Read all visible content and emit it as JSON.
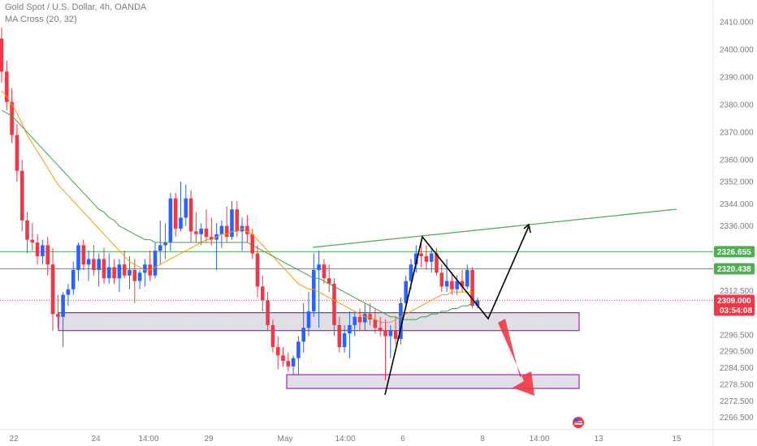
{
  "header": {
    "title": "Gold Spot / U.S. Dollar, 4h, OANDA",
    "indicator": "MA Cross (20, 32)"
  },
  "colors": {
    "up": "#2962ff",
    "down": "#f23645",
    "ma_fast": "#ff9800",
    "ma_slow": "#43a047",
    "level_line": "#4caf50",
    "zone_border": "#9c27b0",
    "zone_fill": "#e1dfe6",
    "drawing": "#000000",
    "arrow": "#f23645",
    "current_badge": "#f23645",
    "level_badge": "#4caf50"
  },
  "chart_data": {
    "type": "candlestick",
    "instrument": "XAUUSD",
    "timeframe": "4h",
    "ylim": [
      2262,
      2418
    ],
    "y_ticks": [
      2266.5,
      2272.5,
      2278.5,
      2284.5,
      2290.5,
      2296.5,
      2312.5,
      2336.0,
      2344.0,
      2352.0,
      2360.0,
      2370.0,
      2380.0,
      2390.0,
      2400.0,
      2410.0
    ],
    "y_tick_labels": [
      "2266.500",
      "2272.500",
      "2278.500",
      "2284.500",
      "2290.500",
      "2296.500",
      "2312.500",
      "2336.000",
      "2344.000",
      "2352.000",
      "2360.000",
      "2370.000",
      "2380.000",
      "2390.000",
      "2400.000",
      "2410.000"
    ],
    "x_tick_labels": [
      "22",
      "24",
      "14:00",
      "29",
      "May",
      "14:00",
      "6",
      "8",
      "14:00",
      "13",
      "15"
    ],
    "x_tick_index": [
      0,
      19,
      31,
      42,
      58,
      70,
      82,
      98,
      110,
      122,
      138
    ],
    "candles": [
      [
        2404.0,
        2408.0,
        2388.0,
        2392.0
      ],
      [
        2392.0,
        2396.0,
        2378.0,
        2381.0
      ],
      [
        2381.0,
        2386.0,
        2366.0,
        2369.0
      ],
      [
        2369.0,
        2373.0,
        2352.0,
        2356.0
      ],
      [
        2356.0,
        2360.0,
        2334.0,
        2338.0
      ],
      [
        2338.0,
        2341.0,
        2326.0,
        2331.0
      ],
      [
        2331.0,
        2337.0,
        2327.0,
        2330.0
      ],
      [
        2330.0,
        2333.0,
        2322.0,
        2325.0
      ],
      [
        2325.0,
        2331.0,
        2322.0,
        2329.0
      ],
      [
        2329.0,
        2332.0,
        2318.0,
        2322.0
      ],
      [
        2322.0,
        2328.0,
        2298.0,
        2304.0
      ],
      [
        2304.0,
        2311.0,
        2299.0,
        2303.0
      ],
      [
        2303.0,
        2312.0,
        2292.0,
        2311.0
      ],
      [
        2311.0,
        2315.0,
        2307.0,
        2313.0
      ],
      [
        2313.0,
        2323.0,
        2311.0,
        2320.0
      ],
      [
        2320.0,
        2330.0,
        2316.0,
        2329.0
      ],
      [
        2329.0,
        2331.0,
        2320.0,
        2322.0
      ],
      [
        2322.0,
        2327.0,
        2316.0,
        2324.0
      ],
      [
        2324.0,
        2329.0,
        2318.0,
        2320.0
      ],
      [
        2320.0,
        2326.0,
        2314.0,
        2324.0
      ],
      [
        2324.0,
        2328.0,
        2315.0,
        2317.0
      ],
      [
        2317.0,
        2326.0,
        2315.0,
        2321.0
      ],
      [
        2321.0,
        2324.0,
        2315.0,
        2317.0
      ],
      [
        2317.0,
        2324.0,
        2312.0,
        2322.0
      ],
      [
        2322.0,
        2327.0,
        2317.0,
        2318.0
      ],
      [
        2318.0,
        2325.0,
        2313.0,
        2320.0
      ],
      [
        2320.0,
        2324.0,
        2308.0,
        2316.0
      ],
      [
        2316.0,
        2320.0,
        2313.0,
        2319.0
      ],
      [
        2319.0,
        2324.0,
        2314.0,
        2322.0
      ],
      [
        2322.0,
        2327.0,
        2316.0,
        2318.0
      ],
      [
        2318.0,
        2330.0,
        2317.0,
        2327.0
      ],
      [
        2327.0,
        2338.0,
        2322.0,
        2329.0
      ],
      [
        2329.0,
        2337.0,
        2324.0,
        2330.0
      ],
      [
        2330.0,
        2348.0,
        2327.0,
        2346.0
      ],
      [
        2346.0,
        2348.0,
        2332.0,
        2335.0
      ],
      [
        2335.0,
        2352.0,
        2334.0,
        2339.0
      ],
      [
        2339.0,
        2351.0,
        2336.0,
        2346.0
      ],
      [
        2346.0,
        2349.0,
        2330.0,
        2334.0
      ],
      [
        2334.0,
        2341.0,
        2330.0,
        2333.0
      ],
      [
        2333.0,
        2337.0,
        2329.0,
        2335.0
      ],
      [
        2335.0,
        2342.0,
        2330.0,
        2332.0
      ],
      [
        2332.0,
        2339.0,
        2329.0,
        2331.0
      ],
      [
        2331.0,
        2337.0,
        2320.0,
        2333.0
      ],
      [
        2333.0,
        2338.0,
        2328.0,
        2336.0
      ],
      [
        2336.0,
        2343.0,
        2330.0,
        2332.0
      ],
      [
        2332.0,
        2345.0,
        2331.0,
        2342.0
      ],
      [
        2342.0,
        2345.0,
        2332.0,
        2334.0
      ],
      [
        2334.0,
        2339.0,
        2327.0,
        2336.0
      ],
      [
        2336.0,
        2340.0,
        2330.0,
        2333.0
      ],
      [
        2333.0,
        2335.0,
        2324.0,
        2326.0
      ],
      [
        2326.0,
        2329.0,
        2310.0,
        2314.0
      ],
      [
        2314.0,
        2318.0,
        2305.0,
        2309.0
      ],
      [
        2309.0,
        2312.0,
        2298.0,
        2300.0
      ],
      [
        2300.0,
        2302.0,
        2290.0,
        2292.0
      ],
      [
        2292.0,
        2296.0,
        2284.0,
        2289.0
      ],
      [
        2289.0,
        2292.0,
        2285.0,
        2287.0
      ],
      [
        2287.0,
        2290.0,
        2283.0,
        2285.0
      ],
      [
        2285.0,
        2289.0,
        2282.0,
        2288.0
      ],
      [
        2288.0,
        2296.0,
        2282.0,
        2294.0
      ],
      [
        2294.0,
        2308.0,
        2290.0,
        2299.0
      ],
      [
        2299.0,
        2312.0,
        2296.0,
        2305.0
      ],
      [
        2305.0,
        2326.0,
        2303.0,
        2320.0
      ],
      [
        2320.0,
        2327.0,
        2299.0,
        2322.0
      ],
      [
        2322.0,
        2324.0,
        2315.0,
        2317.0
      ],
      [
        2317.0,
        2322.0,
        2312.0,
        2315.0
      ],
      [
        2315.0,
        2317.0,
        2296.0,
        2300.0
      ],
      [
        2300.0,
        2303.0,
        2290.0,
        2292.0
      ],
      [
        2292.0,
        2300.0,
        2290.0,
        2297.0
      ],
      [
        2297.0,
        2305.0,
        2288.0,
        2300.0
      ],
      [
        2300.0,
        2305.0,
        2296.0,
        2303.0
      ],
      [
        2303.0,
        2306.0,
        2298.0,
        2301.0
      ],
      [
        2301.0,
        2308.0,
        2298.0,
        2304.0
      ],
      [
        2304.0,
        2308.0,
        2300.0,
        2302.0
      ],
      [
        2302.0,
        2306.0,
        2297.0,
        2299.0
      ],
      [
        2299.0,
        2303.0,
        2296.0,
        2298.0
      ],
      [
        2298.0,
        2302.0,
        2280.0,
        2296.0
      ],
      [
        2296.0,
        2300.0,
        2288.0,
        2298.0
      ],
      [
        2298.0,
        2303.0,
        2293.0,
        2295.0
      ],
      [
        2295.0,
        2310.0,
        2293.0,
        2308.0
      ],
      [
        2308.0,
        2318.0,
        2306.0,
        2316.0
      ],
      [
        2316.0,
        2324.0,
        2313.0,
        2322.0
      ],
      [
        2322.0,
        2329.0,
        2319.0,
        2326.0
      ],
      [
        2326.0,
        2330.0,
        2321.0,
        2325.0
      ],
      [
        2325.0,
        2329.0,
        2320.0,
        2323.0
      ],
      [
        2323.0,
        2328.0,
        2319.0,
        2326.0
      ],
      [
        2326.0,
        2328.0,
        2318.0,
        2319.0
      ],
      [
        2319.0,
        2322.0,
        2312.0,
        2314.0
      ],
      [
        2314.0,
        2324.0,
        2312.0,
        2316.0
      ],
      [
        2316.0,
        2319.0,
        2311.0,
        2313.0
      ],
      [
        2313.0,
        2318.0,
        2311.0,
        2316.0
      ],
      [
        2316.0,
        2320.0,
        2312.0,
        2314.0
      ],
      [
        2314.0,
        2322.0,
        2313.0,
        2320.0
      ],
      [
        2320.0,
        2321.0,
        2306.0,
        2307.0
      ],
      [
        2307.0,
        2310.0,
        2306.0,
        2309.0
      ]
    ],
    "ma_cross": [
      {
        "name": "MA 20",
        "values": [
          2385,
          2383,
          2380,
          2377,
          2373,
          2369,
          2366,
          2363,
          2360,
          2357,
          2354,
          2351,
          2349,
          2347,
          2345,
          2343,
          2341,
          2339,
          2337,
          2335,
          2333,
          2331,
          2329,
          2327,
          2325,
          2323,
          2322,
          2321,
          2320,
          2320,
          2321,
          2322,
          2323,
          2324,
          2325,
          2326,
          2327,
          2328,
          2329,
          2330,
          2331,
          2331,
          2332,
          2333,
          2333,
          2334,
          2334,
          2335,
          2334,
          2333,
          2331,
          2329,
          2327,
          2325,
          2323,
          2321,
          2319,
          2317,
          2315,
          2314,
          2313,
          2313,
          2312,
          2311,
          2310,
          2309,
          2308,
          2307,
          2306,
          2305,
          2304,
          2303,
          2303,
          2302,
          2301,
          2301,
          2301,
          2302,
          2303,
          2304,
          2305,
          2306,
          2307,
          2308,
          2309,
          2310,
          2311,
          2311,
          2312,
          2312,
          2312,
          2312,
          2312
        ]
      },
      {
        "name": "MA 32",
        "values": [
          2378,
          2377,
          2376,
          2374,
          2372,
          2370,
          2368,
          2366,
          2364,
          2362,
          2360,
          2358,
          2356,
          2354,
          2352,
          2350,
          2348,
          2346,
          2344,
          2342,
          2341,
          2339,
          2338,
          2336,
          2335,
          2334,
          2333,
          2332,
          2331,
          2331,
          2330,
          2330,
          2330,
          2330,
          2330,
          2330,
          2330,
          2330,
          2330,
          2330,
          2330,
          2330,
          2330,
          2330,
          2330,
          2330,
          2330,
          2330,
          2330,
          2329,
          2328,
          2327,
          2326,
          2325,
          2324,
          2323,
          2322,
          2321,
          2320,
          2319,
          2318,
          2317,
          2317,
          2316,
          2315,
          2314,
          2313,
          2312,
          2311,
          2310,
          2309,
          2308,
          2307,
          2306,
          2305,
          2304,
          2303,
          2303,
          2302,
          2302,
          2302,
          2302,
          2303,
          2303,
          2304,
          2304,
          2305,
          2305,
          2306,
          2306,
          2307,
          2307,
          2308
        ]
      }
    ],
    "levels": [
      {
        "price": 2326.655,
        "label": "2326.655"
      },
      {
        "price": 2320.438,
        "label": "2320.438"
      }
    ],
    "current_price": {
      "price": 2309.0,
      "label": "2309.000",
      "countdown": "03:54:08"
    },
    "zones": [
      {
        "top": 2304.5,
        "bottom": 2298.0,
        "from_index": 5,
        "to_index": 125
      },
      {
        "top": 2282.0,
        "bottom": 2277.0,
        "from_index": 61,
        "to_index": 125
      }
    ],
    "trendline": {
      "from": {
        "index": 66,
        "price": 2330.0
      },
      "to": {
        "index": 146,
        "price": 2342.0
      }
    },
    "zigzag": [
      {
        "index": 82,
        "price": 2277.0
      },
      {
        "index": 90,
        "price": 2330.0
      },
      {
        "index": 104,
        "price": 2305.0
      },
      {
        "index": 112,
        "price": 2338.0
      }
    ],
    "forecast_arrow": {
      "from": {
        "index": 107,
        "price": 2302.0
      },
      "to": {
        "index": 115,
        "price": 2281.0
      }
    },
    "grid": false,
    "legend": "top-left"
  }
}
